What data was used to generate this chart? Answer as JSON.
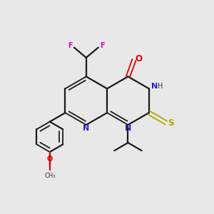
{
  "background_color": "#e8e8e8",
  "bond_color": "#1a1a1a",
  "N_color": "#2222cc",
  "O_color": "#dd0000",
  "S_color": "#aaaa00",
  "F_color": "#ee00bb",
  "text_color": "#333333",
  "figsize": [
    3.0,
    3.0
  ],
  "dpi": 100,
  "xlim": [
    0,
    10
  ],
  "ylim": [
    0,
    10
  ]
}
